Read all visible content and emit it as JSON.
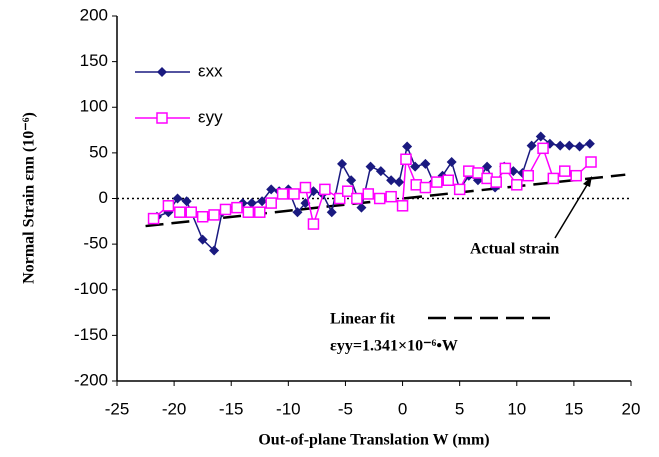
{
  "chart_data": {
    "type": "line",
    "y_label": "Normal Strain  εnn (10⁻⁶)",
    "x_label": "Out-of-plane Translation  W (mm)",
    "xlim": [
      -25,
      20
    ],
    "xticks": [
      -25,
      -20,
      -15,
      -10,
      -5,
      0,
      5,
      10,
      15,
      20
    ],
    "ylim": [
      -200,
      200
    ],
    "yticks": [
      -200,
      -150,
      -100,
      -50,
      0,
      50,
      100,
      150,
      200
    ],
    "series": [
      {
        "name": "εxx",
        "color": "#1a1a80",
        "marker": "diamond",
        "x": [
          -21.5,
          -20.5,
          -19.7,
          -18.9,
          -17.5,
          -16.5,
          -15.8,
          -14.7,
          -14,
          -13.2,
          -12.3,
          -11.5,
          -10.8,
          -10,
          -9.2,
          -8.5,
          -7.8,
          -7,
          -6.2,
          -5.3,
          -4.5,
          -3.6,
          -2.8,
          -1.9,
          -1,
          -0.3,
          0.4,
          1.1,
          2,
          2.7,
          3.5,
          4.3,
          5,
          5.8,
          6.6,
          7.4,
          8.1,
          8.9,
          9.7,
          10.5,
          11.3,
          12.1,
          12.9,
          13.8,
          14.6,
          15.5,
          16.4
        ],
        "values": [
          -20,
          -15,
          0,
          -3,
          -45,
          -57,
          -15,
          -10,
          -5,
          -5,
          -3,
          10,
          8,
          10,
          -15,
          -5,
          8,
          5,
          -15,
          38,
          20,
          -10,
          35,
          30,
          20,
          18,
          57,
          35,
          38,
          18,
          25,
          40,
          10,
          25,
          20,
          35,
          12,
          35,
          30,
          28,
          58,
          68,
          60,
          58,
          58,
          57,
          60
        ]
      },
      {
        "name": "εyy",
        "color": "#ff00ff",
        "marker": "square",
        "x": [
          -21.8,
          -20.5,
          -19.5,
          -18.5,
          -17.5,
          -16.5,
          -15.5,
          -14.5,
          -13.5,
          -12.5,
          -11.5,
          -10.5,
          -9.5,
          -8.5,
          -7.8,
          -6.8,
          -5.5,
          -4.8,
          -4,
          -3,
          -2,
          -1,
          0,
          0.3,
          1.2,
          2,
          3,
          4,
          5,
          5.8,
          6.6,
          7.4,
          8.2,
          9,
          10,
          11,
          12.3,
          13.2,
          14.2,
          15.2,
          16.5
        ],
        "values": [
          -22,
          -8,
          -15,
          -15,
          -20,
          -18,
          -12,
          -10,
          -15,
          -15,
          -5,
          5,
          5,
          12,
          -28,
          10,
          0,
          8,
          0,
          5,
          0,
          2,
          -8,
          43,
          15,
          12,
          18,
          20,
          10,
          30,
          28,
          22,
          18,
          33,
          15,
          25,
          55,
          22,
          30,
          25,
          40
        ]
      }
    ],
    "fit_line": {
      "x": [
        -22.5,
        19.5
      ],
      "y": [
        -30.2,
        26.1
      ]
    },
    "annotations": {
      "actual": "Actual strain",
      "fit_label": "Linear fit",
      "fit_eq": "εyy=1.341×10⁻⁶•W"
    }
  }
}
